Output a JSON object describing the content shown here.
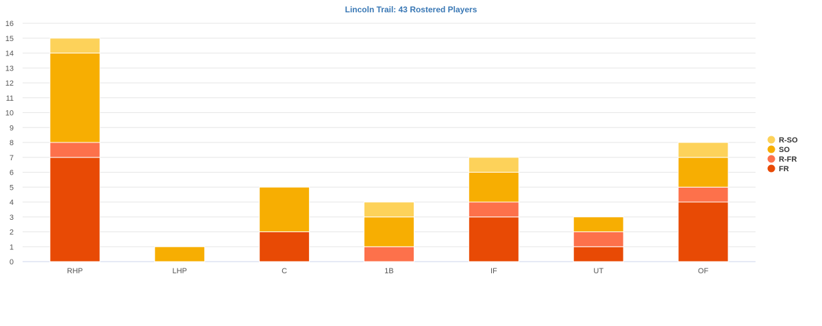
{
  "chart_data": {
    "type": "bar",
    "stacked": true,
    "title": "Lincoln Trail: 43 Rostered Players",
    "xlabel": "",
    "ylabel": "",
    "ylim": [
      0,
      16
    ],
    "yticks": [
      0,
      1,
      2,
      3,
      4,
      5,
      6,
      7,
      8,
      9,
      10,
      11,
      12,
      13,
      14,
      15,
      16
    ],
    "grid": true,
    "legend_position": "right",
    "categories": [
      "RHP",
      "LHP",
      "C",
      "1B",
      "IF",
      "UT",
      "OF"
    ],
    "series": [
      {
        "name": "FR",
        "color": "#e84a05",
        "values": [
          7,
          0,
          2,
          0,
          3,
          1,
          4
        ]
      },
      {
        "name": "R-FR",
        "color": "#fd714b",
        "values": [
          1,
          0,
          0,
          1,
          1,
          1,
          1
        ]
      },
      {
        "name": "SO",
        "color": "#f7ae02",
        "values": [
          6,
          1,
          3,
          2,
          2,
          1,
          2
        ]
      },
      {
        "name": "R-SO",
        "color": "#fdd25a",
        "values": [
          1,
          0,
          0,
          1,
          1,
          0,
          1
        ]
      }
    ],
    "legend_order": [
      "R-SO",
      "SO",
      "R-FR",
      "FR"
    ]
  }
}
